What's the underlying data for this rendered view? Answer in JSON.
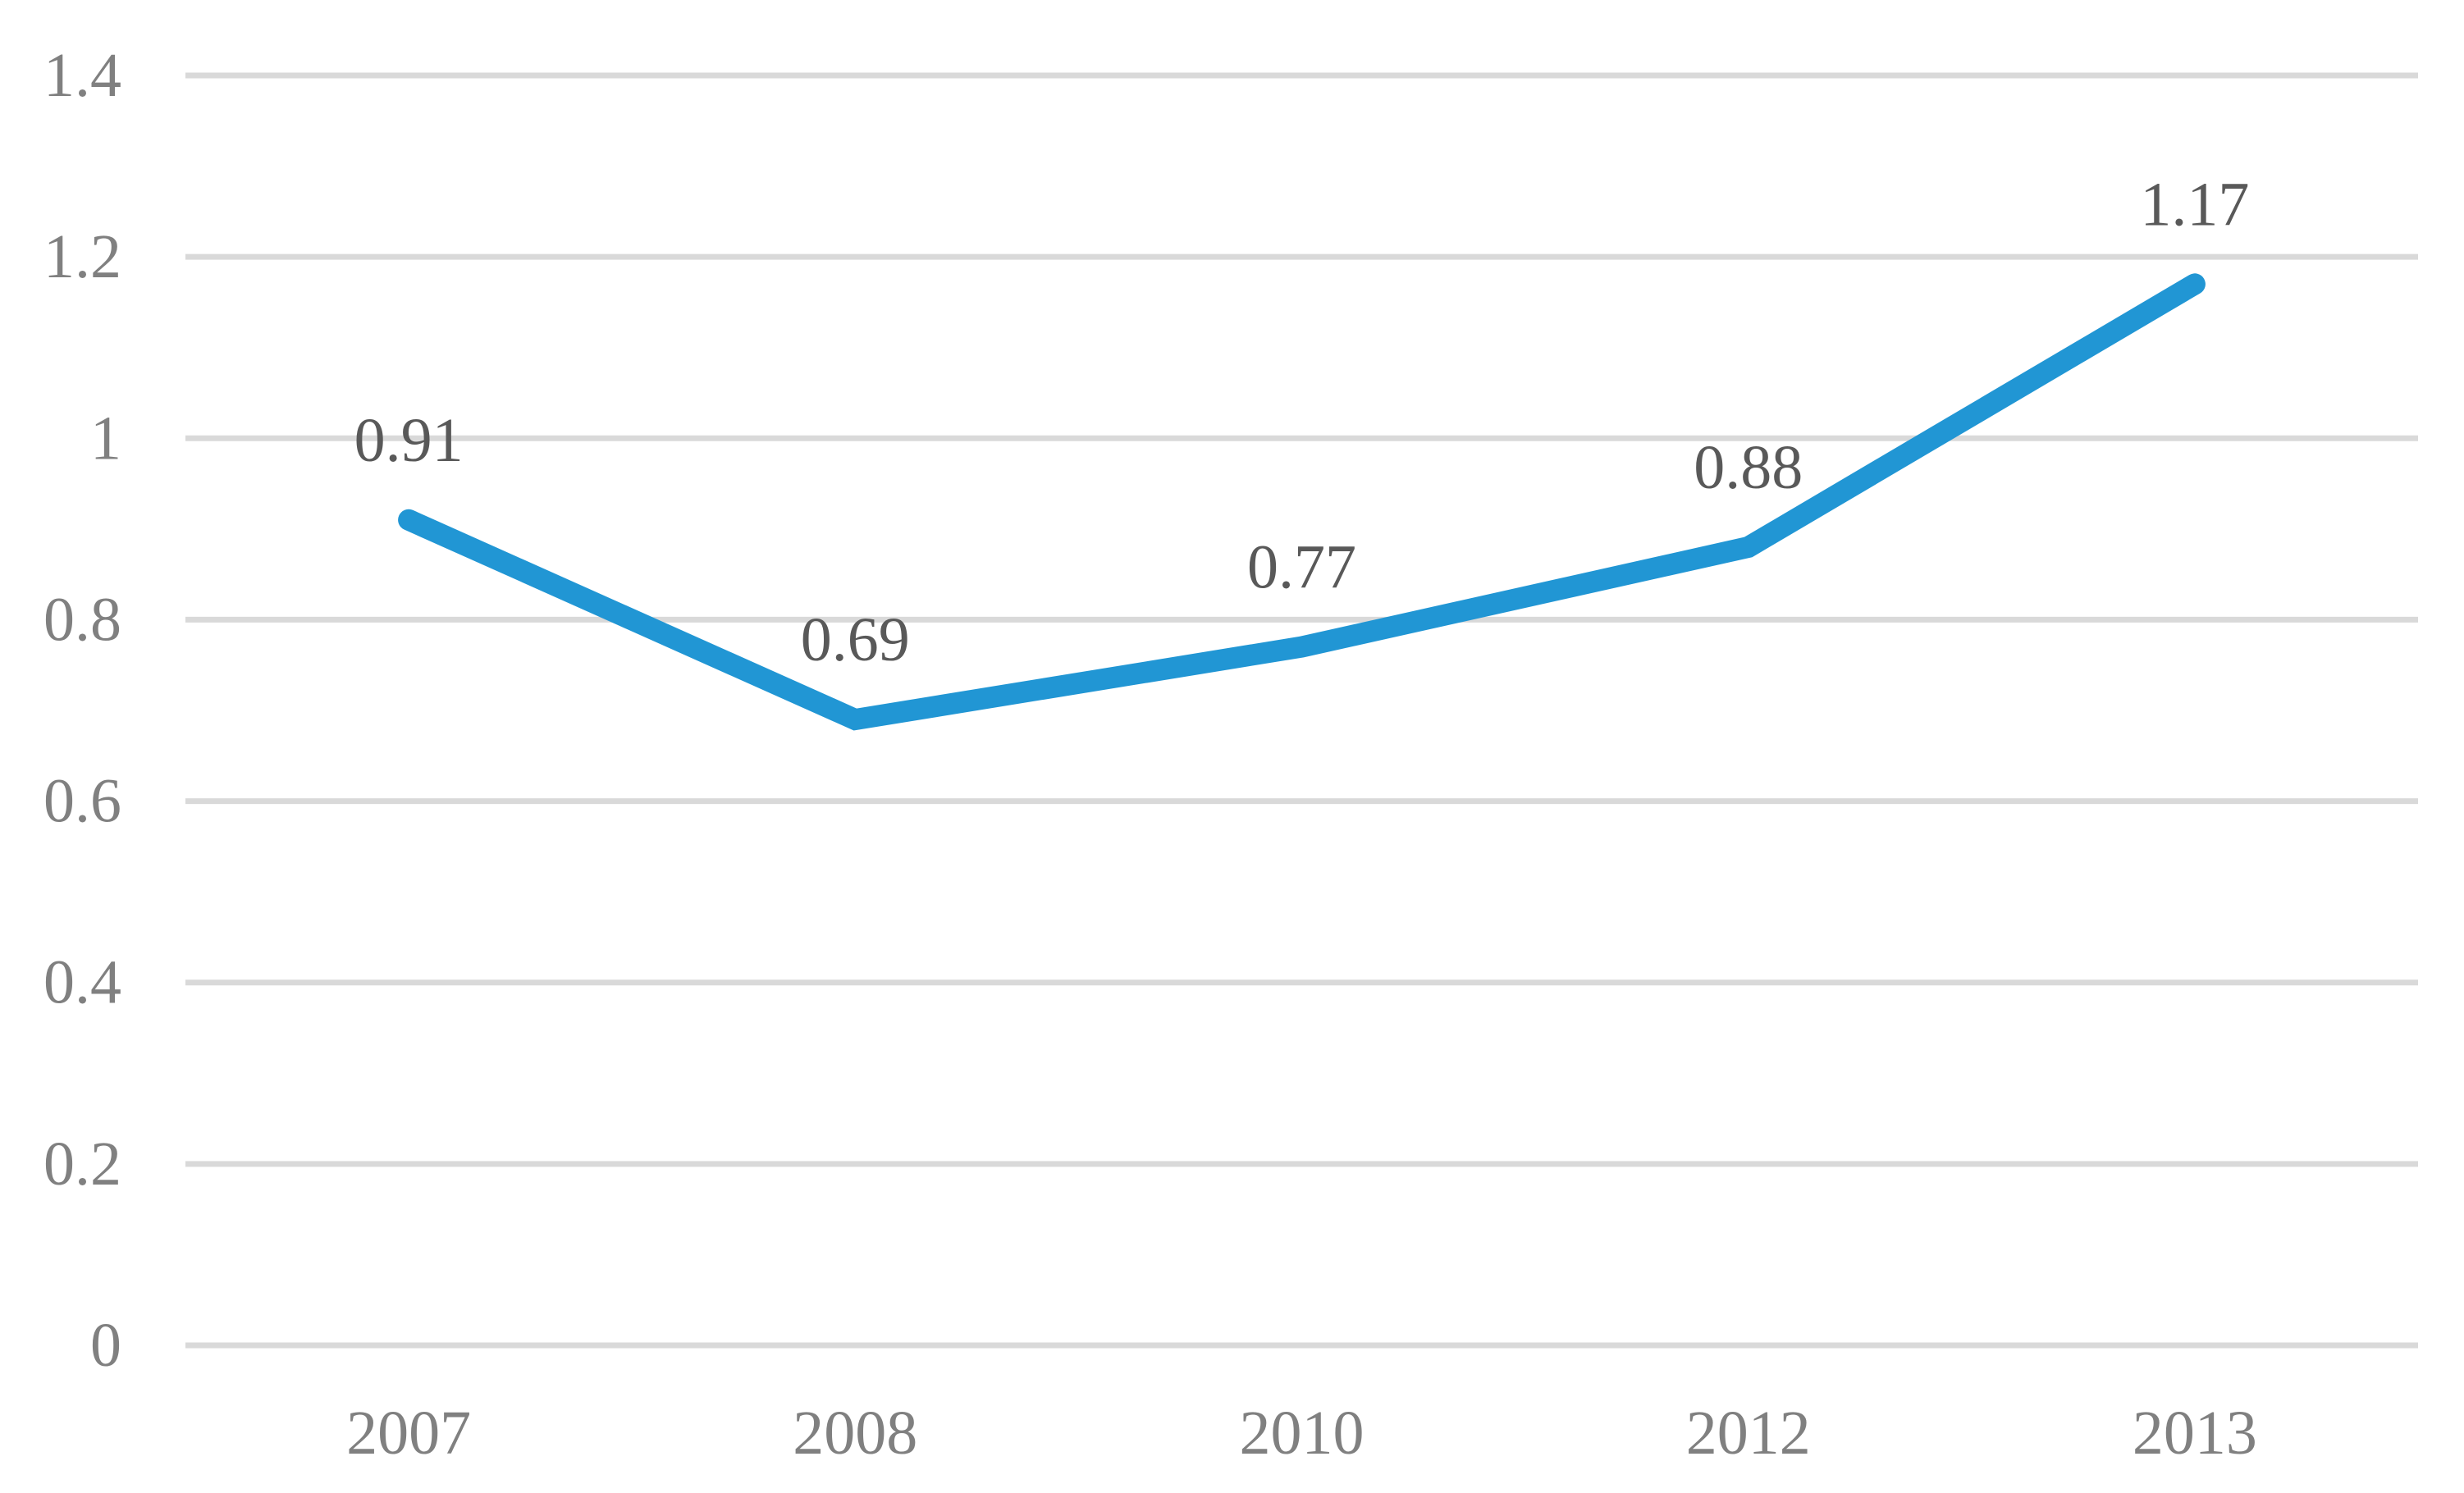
{
  "chart_data": {
    "type": "line",
    "title": "",
    "xlabel": "",
    "ylabel": "",
    "categories": [
      "2007",
      "2008",
      "2010",
      "2012",
      "2013"
    ],
    "series": [
      {
        "name": "",
        "values": [
          0.91,
          0.69,
          0.77,
          0.88,
          1.17
        ],
        "data_labels": [
          "0.91",
          "0.69",
          "0.77",
          "0.88",
          "1.17"
        ]
      }
    ],
    "ylim": [
      0,
      1.4
    ],
    "y_ticks": [
      {
        "value": 1.4,
        "label": "1.4"
      },
      {
        "value": 1.2,
        "label": "1.2"
      },
      {
        "value": 1.0,
        "label": "1"
      },
      {
        "value": 0.8,
        "label": "0.8"
      },
      {
        "value": 0.6,
        "label": "0.6"
      },
      {
        "value": 0.4,
        "label": "0.4"
      },
      {
        "value": 0.2,
        "label": "0.2"
      },
      {
        "value": 0.0,
        "label": "0"
      }
    ],
    "grid": "horizontal",
    "legend_position": "none",
    "markers": "none",
    "colors": {
      "line": "#2196d4",
      "gridline": "#d9d9d9",
      "axis_label": "#808080",
      "data_label": "#595959",
      "background": "#ffffff"
    }
  }
}
